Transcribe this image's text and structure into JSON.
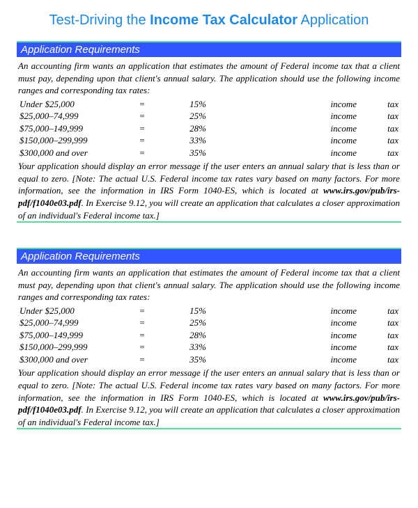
{
  "title": {
    "prefix": "Test-Driving the ",
    "bold": "Income Tax Calculator",
    "suffix": " Application"
  },
  "colors": {
    "title_color": "#1e88e5",
    "header_bg": "#3355ff",
    "header_text": "#ffffff",
    "accent_border": "#55dd99",
    "body_text": "#000000",
    "page_bg": "#ffffff"
  },
  "sections": [
    {
      "header": "Application Requirements",
      "intro": "An accounting firm wants an application that estimates the amount of Federal income tax that a client must pay, depending upon that client's annual salary. The application should use the following income ranges and corresponding tax rates:",
      "tax_rows": [
        {
          "range": "Under   $25,000",
          "eq": "=",
          "rate": "15%",
          "income": "income",
          "tax": "tax"
        },
        {
          "range": "$25,000–74,999",
          "eq": "=",
          "rate": "25%",
          "income": "income",
          "tax": "tax"
        },
        {
          "range": "$75,000–149,999",
          "eq": "=",
          "rate": "28%",
          "income": "income",
          "tax": "tax"
        },
        {
          "range": "$150,000–299,999",
          "eq": "=",
          "rate": "33%",
          "income": "income",
          "tax": "tax"
        },
        {
          "range": "$300,000 and over",
          "eq": "=",
          "rate": "35%",
          "income": "income",
          "tax": "tax"
        }
      ],
      "footer_pre": "Your application should display an error message if the user enters an annual salary that is less than or equal to zero. [Note: The actual U.S. Federal income tax rates vary based on many factors. For more information, see the information in IRS Form 1040-ES, which is located at ",
      "footer_url": "www.irs.gov/pub/irs-pdf/f1040e03.pdf",
      "footer_post": ". In Exercise 9.12, you will create an application that calculates a closer approximation of an individual's Federal income tax.]"
    },
    {
      "header": "Application Requirements",
      "intro": "An accounting firm wants an application that estimates the amount of Federal income tax that a client must pay, depending upon that client's annual salary. The application should use the following income ranges and corresponding tax rates:",
      "tax_rows": [
        {
          "range": "Under   $25,000",
          "eq": "=",
          "rate": "15%",
          "income": "income",
          "tax": "tax"
        },
        {
          "range": "$25,000–74,999",
          "eq": "=",
          "rate": "25%",
          "income": "income",
          "tax": "tax"
        },
        {
          "range": "$75,000–149,999",
          "eq": "=",
          "rate": "28%",
          "income": "income",
          "tax": "tax"
        },
        {
          "range": "$150,000–299,999",
          "eq": "=",
          "rate": "33%",
          "income": "income",
          "tax": "tax"
        },
        {
          "range": "$300,000 and over",
          "eq": "=",
          "rate": "35%",
          "income": "income",
          "tax": "tax"
        }
      ],
      "footer_pre": "Your application should display an error message if the user enters an annual salary that is less than or equal to zero. [Note: The actual U.S. Federal income tax rates vary based on many factors. For more information, see the information in IRS Form 1040-ES, which is located at ",
      "footer_url": "www.irs.gov/pub/irs-pdf/f1040e03.pdf",
      "footer_post": ". In Exercise 9.12, you will create an application that calculates a closer approximation of an individual's Federal income tax.]"
    }
  ]
}
